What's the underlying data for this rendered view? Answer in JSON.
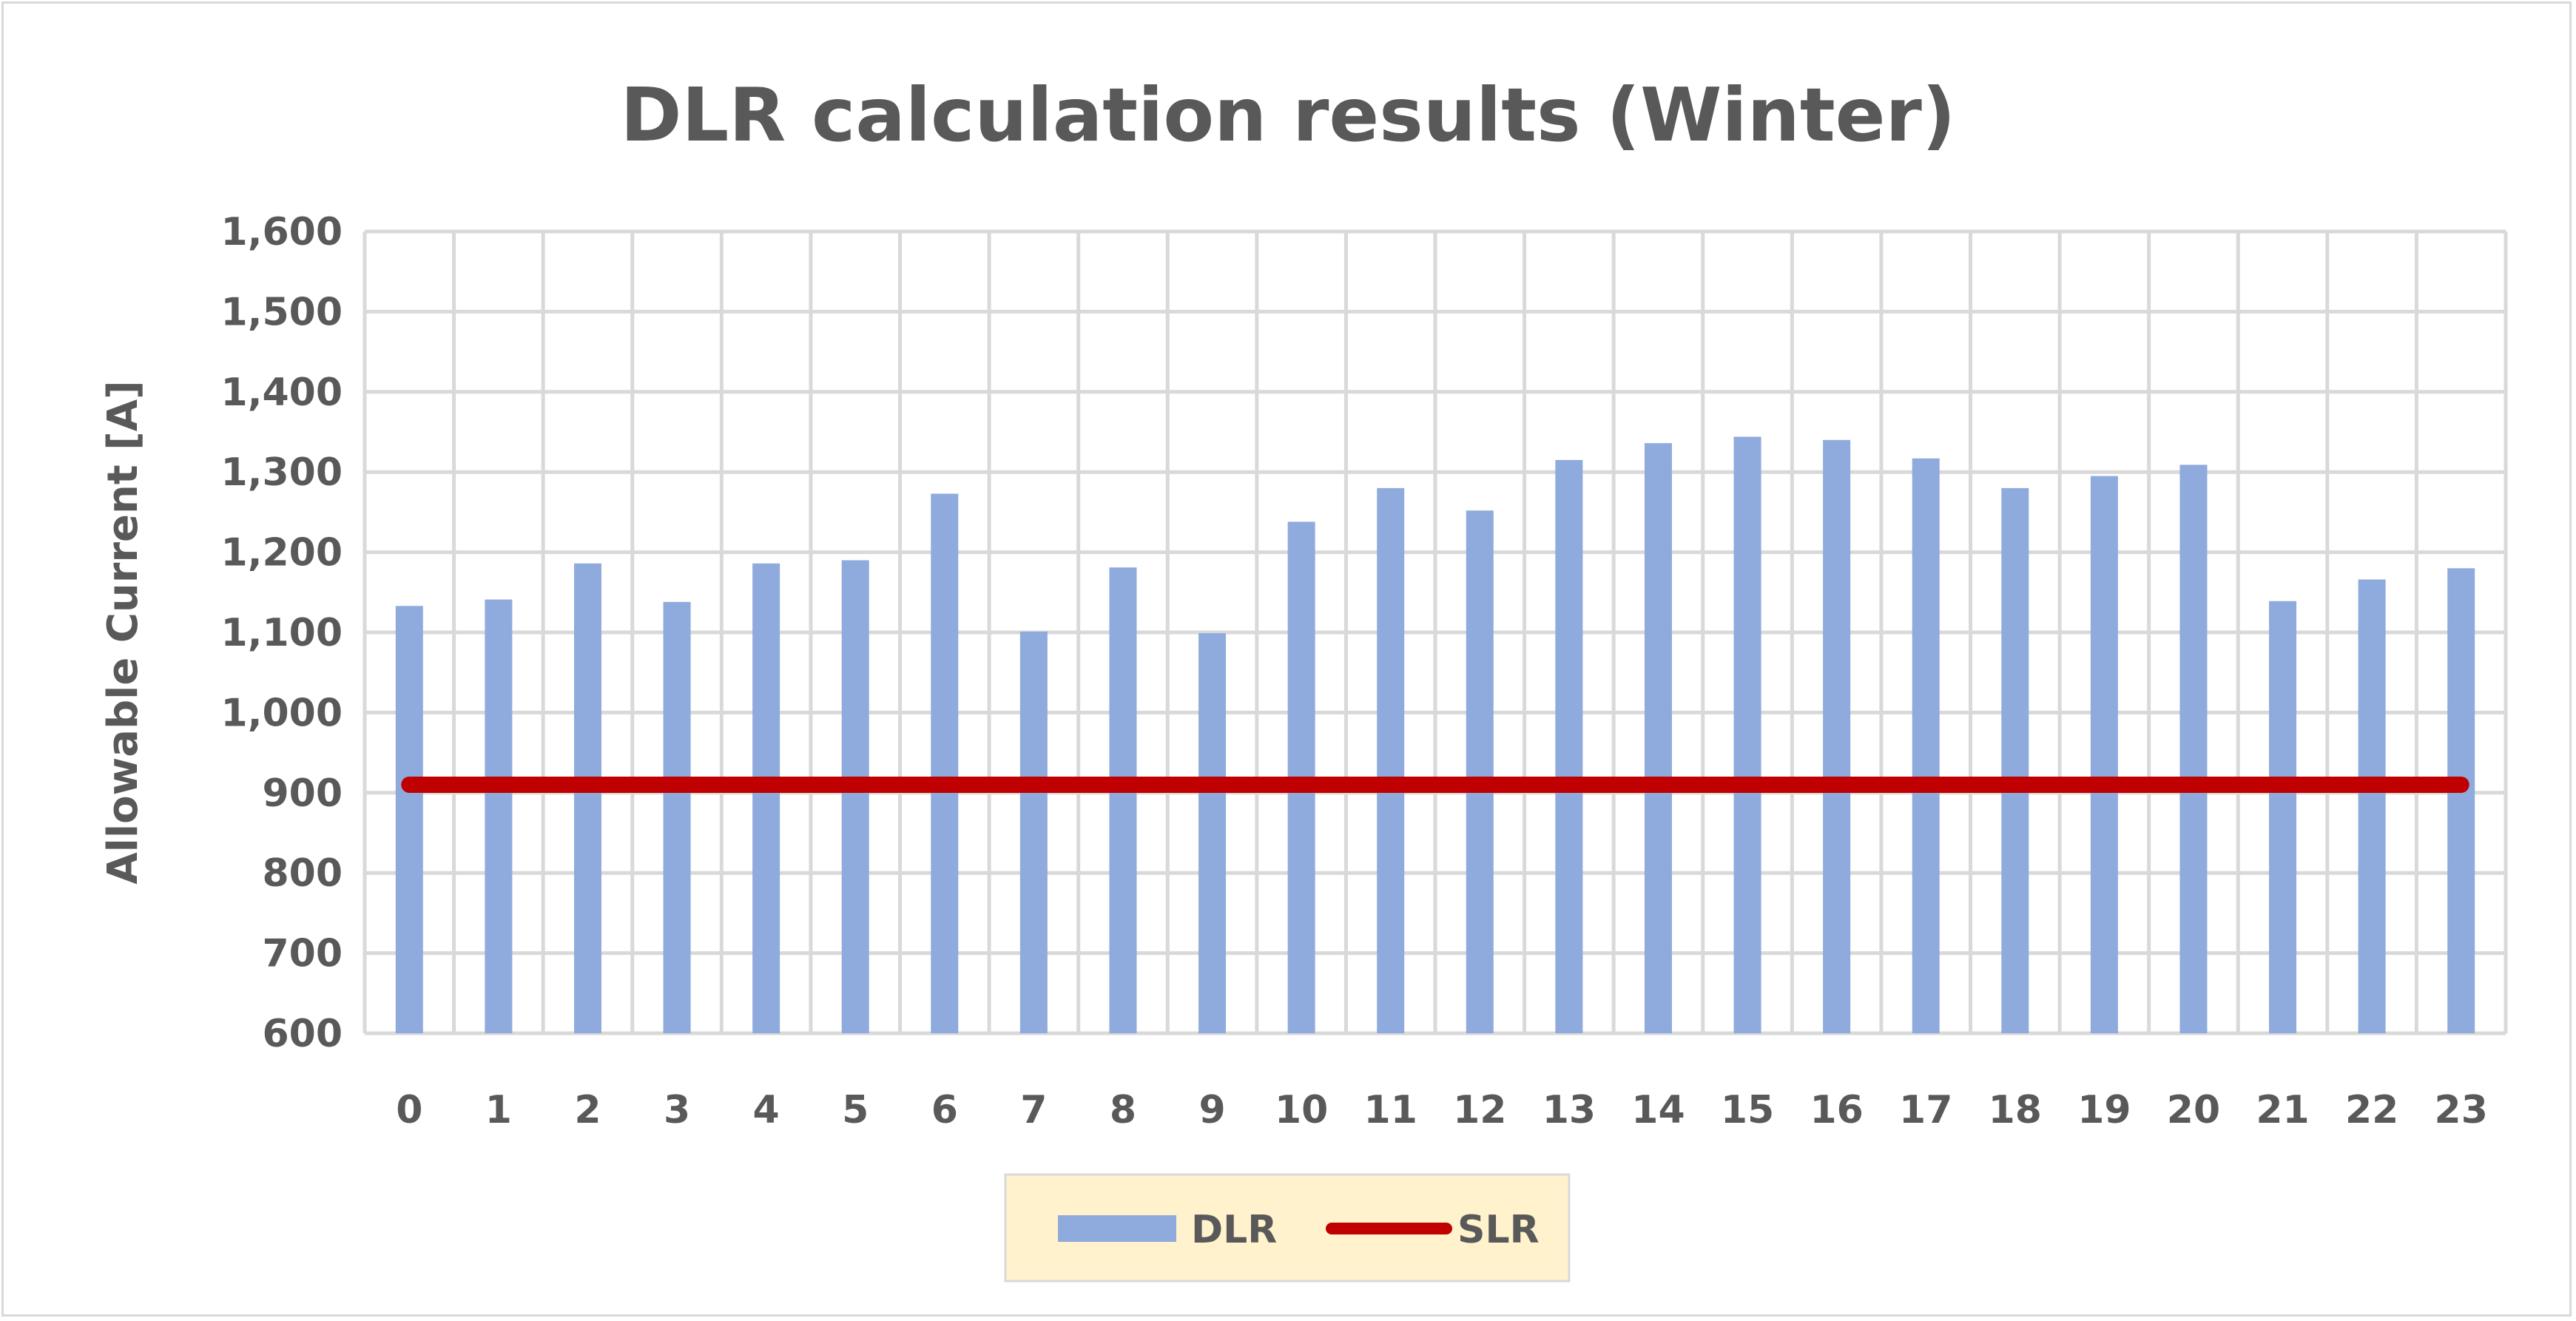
{
  "chart_data": {
    "type": "bar",
    "title": "DLR calculation results (Winter)",
    "xlabel": "",
    "ylabel": "Allowable Current [A]",
    "ylim": [
      600,
      1600
    ],
    "yticks": [
      "600",
      "700",
      "800",
      "900",
      "1,000",
      "1,100",
      "1,200",
      "1,300",
      "1,400",
      "1,500",
      "1,600"
    ],
    "ytick_values": [
      600,
      700,
      800,
      900,
      1000,
      1100,
      1200,
      1300,
      1400,
      1500,
      1600
    ],
    "categories": [
      "0",
      "1",
      "2",
      "3",
      "4",
      "5",
      "6",
      "7",
      "8",
      "9",
      "10",
      "11",
      "12",
      "13",
      "14",
      "15",
      "16",
      "17",
      "18",
      "19",
      "20",
      "21",
      "22",
      "23"
    ],
    "series": [
      {
        "name": "DLR",
        "type": "bar",
        "color": "#8faadc",
        "values": [
          1133,
          1141,
          1186,
          1138,
          1186,
          1190,
          1273,
          1101,
          1181,
          1099,
          1238,
          1280,
          1252,
          1315,
          1336,
          1344,
          1340,
          1317,
          1280,
          1295,
          1309,
          1139,
          1166,
          1180
        ]
      },
      {
        "name": "SLR",
        "type": "line",
        "color": "#c00000",
        "values": [
          910,
          910,
          910,
          910,
          910,
          910,
          910,
          910,
          910,
          910,
          910,
          910,
          910,
          910,
          910,
          910,
          910,
          910,
          910,
          910,
          910,
          910,
          910,
          910
        ]
      }
    ],
    "grid": true,
    "legend_position": "bottom",
    "legend_background": "#fff2cc"
  }
}
